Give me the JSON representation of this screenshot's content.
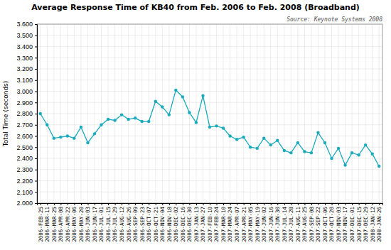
{
  "chart_data": {
    "type": "line",
    "title": "Average Response Time of KB40 from Feb. 2006 to Feb. 2008 (Broadband)",
    "annotations": [
      "Source: Keynote Systems 2008"
    ],
    "y_label": "Total Time (seconds)",
    "color": "#19AABD",
    "marker": "circle",
    "grid": true,
    "ylim": [
      2.0,
      3.6
    ],
    "yticks": [
      {
        "value": 2.0,
        "label": "2.000"
      },
      {
        "value": 2.1,
        "label": "2.100"
      },
      {
        "value": 2.2,
        "label": "2.200"
      },
      {
        "value": 2.3,
        "label": "2.300"
      },
      {
        "value": 2.4,
        "label": "2.400"
      },
      {
        "value": 2.5,
        "label": "2.500"
      },
      {
        "value": 2.6,
        "label": "2.600"
      },
      {
        "value": 2.7,
        "label": "2.700"
      },
      {
        "value": 2.8,
        "label": "2.800"
      },
      {
        "value": 2.9,
        "label": "2.900"
      },
      {
        "value": 3.0,
        "label": "3.000"
      },
      {
        "value": 3.1,
        "label": "3.100"
      },
      {
        "value": 3.2,
        "label": "3.200"
      },
      {
        "value": 3.3,
        "label": "3.300"
      },
      {
        "value": 3.4,
        "label": "3.400"
      },
      {
        "value": 3.5,
        "label": "3.500"
      },
      {
        "value": 3.6,
        "label": "3.600"
      }
    ],
    "categories": [
      "2006-FEB-25",
      "2006-MAR-11",
      "2006-MAR-25",
      "2006-APR-08",
      "2006-APR-22",
      "2006-MAY-06",
      "2006-MAY-20",
      "2006-JUN-03",
      "2006-JUN-17",
      "2006-JUL-01",
      "2006-JUL-15",
      "2006-JUL-29",
      "2006-AUG-12",
      "2006-AUG-26",
      "2006-SEP-09",
      "2006-SEP-23",
      "2006-OCT-07",
      "2006-OCT-21",
      "2006-NOV-04",
      "2006-NOV-18",
      "2006-DEC-02",
      "2006-DEC-16",
      "2006-DEC-30",
      "2007-JAN-13",
      "2007-JAN-27",
      "2007-FEB-10",
      "2007-FEB-24",
      "2007-MAR-10",
      "2007-MAR-24",
      "2007-APR-07",
      "2007-APR-21",
      "2007-MAY-05",
      "2007-MAY-19",
      "2007-JUN-02",
      "2007-JUN-16",
      "2007-JUN-30",
      "2007-JUL-14",
      "2007-JUL-28",
      "2007-AUG-11",
      "2007-AUG-25",
      "2007-SEP-08",
      "2007-SEP-22",
      "2007-OCT-06",
      "2007-OCT-20",
      "2007-NOV-03",
      "2007-NOV-17",
      "2007-DEC-01",
      "2007-DEC-15",
      "2007-DEC-29",
      "2008-JAN-12",
      "2008-JAN-26"
    ],
    "values": [
      2.8,
      2.7,
      2.58,
      2.59,
      2.6,
      2.58,
      2.68,
      2.54,
      2.62,
      2.7,
      2.75,
      2.74,
      2.79,
      2.75,
      2.76,
      2.73,
      2.73,
      2.91,
      2.86,
      2.79,
      3.01,
      2.95,
      2.81,
      2.72,
      2.96,
      2.68,
      2.69,
      2.67,
      2.6,
      2.57,
      2.59,
      2.5,
      2.49,
      2.58,
      2.52,
      2.56,
      2.47,
      2.45,
      2.54,
      2.46,
      2.45,
      2.63,
      2.54,
      2.4,
      2.49,
      2.34,
      2.45,
      2.43,
      2.52,
      2.44,
      2.33
    ]
  }
}
